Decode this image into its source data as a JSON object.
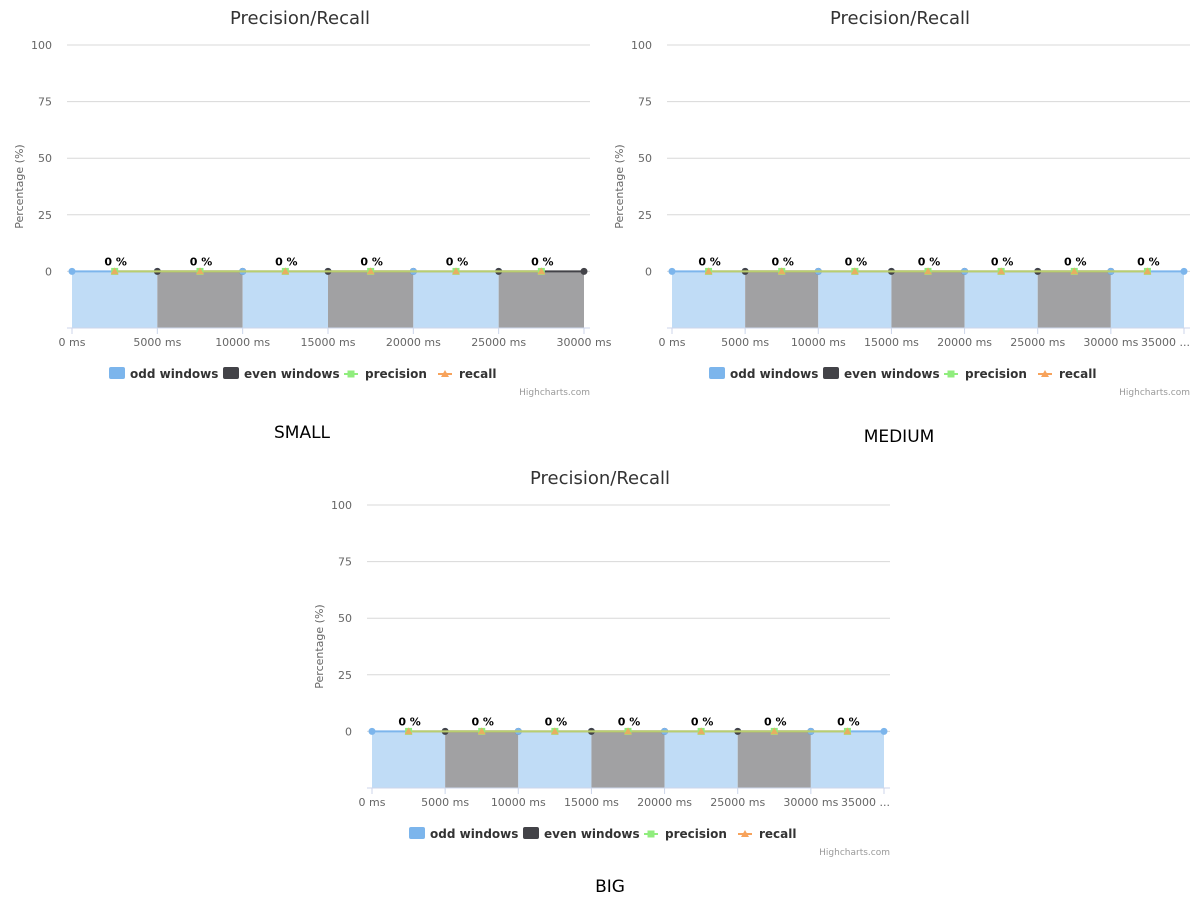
{
  "chart_data": [
    {
      "id": "small",
      "type": "area",
      "title": "Precision/Recall",
      "ylabel": "Percentage (%)",
      "ylim": [
        -25,
        100
      ],
      "yticks": [
        0,
        25,
        50,
        75,
        100
      ],
      "xlim": [
        0,
        30000
      ],
      "xticks": [
        "0 ms",
        "5000 ms",
        "10000 ms",
        "15000 ms",
        "20000 ms",
        "25000 ms",
        "30000 ms"
      ],
      "windows": [
        {
          "start": 0,
          "end": 5000,
          "kind": "odd"
        },
        {
          "start": 5000,
          "end": 10000,
          "kind": "even"
        },
        {
          "start": 10000,
          "end": 15000,
          "kind": "odd"
        },
        {
          "start": 15000,
          "end": 20000,
          "kind": "even"
        },
        {
          "start": 20000,
          "end": 25000,
          "kind": "odd"
        },
        {
          "start": 25000,
          "end": 30000,
          "kind": "even"
        }
      ],
      "window_baseline": -25,
      "window_value": 0,
      "precision": {
        "x": [
          2500,
          7500,
          12500,
          17500,
          22500,
          27500
        ],
        "y": [
          0,
          0,
          0,
          0,
          0,
          0
        ]
      },
      "recall": {
        "x": [
          2500,
          7500,
          12500,
          17500,
          22500,
          27500
        ],
        "y": [
          0,
          0,
          0,
          0,
          0,
          0
        ]
      },
      "data_labels": [
        "0 %",
        "0 %",
        "0 %",
        "0 %",
        "0 %",
        "0 %"
      ],
      "legend": [
        "odd windows",
        "even windows",
        "precision",
        "recall"
      ],
      "legend_position": "bottom-center",
      "credits": "Highcharts.com",
      "grid": true
    },
    {
      "id": "medium",
      "type": "area",
      "title": "Precision/Recall",
      "ylabel": "Percentage (%)",
      "ylim": [
        -25,
        100
      ],
      "yticks": [
        0,
        25,
        50,
        75,
        100
      ],
      "xlim": [
        0,
        35000
      ],
      "xticks": [
        "0 ms",
        "5000 ms",
        "10000 ms",
        "15000 ms",
        "20000 ms",
        "25000 ms",
        "30000 ms",
        "35000 ..."
      ],
      "windows": [
        {
          "start": 0,
          "end": 5000,
          "kind": "odd"
        },
        {
          "start": 5000,
          "end": 10000,
          "kind": "even"
        },
        {
          "start": 10000,
          "end": 15000,
          "kind": "odd"
        },
        {
          "start": 15000,
          "end": 20000,
          "kind": "even"
        },
        {
          "start": 20000,
          "end": 25000,
          "kind": "odd"
        },
        {
          "start": 25000,
          "end": 30000,
          "kind": "even"
        },
        {
          "start": 30000,
          "end": 35000,
          "kind": "odd"
        }
      ],
      "window_baseline": -25,
      "window_value": 0,
      "precision": {
        "x": [
          2500,
          7500,
          12500,
          17500,
          22500,
          27500,
          32500
        ],
        "y": [
          0,
          0,
          0,
          0,
          0,
          0,
          0
        ]
      },
      "recall": {
        "x": [
          2500,
          7500,
          12500,
          17500,
          22500,
          27500,
          32500
        ],
        "y": [
          0,
          0,
          0,
          0,
          0,
          0,
          0
        ]
      },
      "data_labels": [
        "0 %",
        "0 %",
        "0 %",
        "0 %",
        "0 %",
        "0 %",
        "0 %"
      ],
      "legend": [
        "odd windows",
        "even windows",
        "precision",
        "recall"
      ],
      "legend_position": "bottom-center",
      "credits": "Highcharts.com",
      "grid": true
    },
    {
      "id": "big",
      "type": "area",
      "title": "Precision/Recall",
      "ylabel": "Percentage (%)",
      "ylim": [
        -25,
        100
      ],
      "yticks": [
        0,
        25,
        50,
        75,
        100
      ],
      "xlim": [
        0,
        35000
      ],
      "xticks": [
        "0 ms",
        "5000 ms",
        "10000 ms",
        "15000 ms",
        "20000 ms",
        "25000 ms",
        "30000 ms",
        "35000 ..."
      ],
      "windows": [
        {
          "start": 0,
          "end": 5000,
          "kind": "odd"
        },
        {
          "start": 5000,
          "end": 10000,
          "kind": "even"
        },
        {
          "start": 10000,
          "end": 15000,
          "kind": "odd"
        },
        {
          "start": 15000,
          "end": 20000,
          "kind": "even"
        },
        {
          "start": 20000,
          "end": 25000,
          "kind": "odd"
        },
        {
          "start": 25000,
          "end": 30000,
          "kind": "even"
        },
        {
          "start": 30000,
          "end": 35000,
          "kind": "odd"
        }
      ],
      "window_baseline": -25,
      "window_value": 0,
      "precision": {
        "x": [
          2500,
          7500,
          12500,
          17500,
          22500,
          27500,
          32500
        ],
        "y": [
          0,
          0,
          0,
          0,
          0,
          0,
          0
        ]
      },
      "recall": {
        "x": [
          2500,
          7500,
          12500,
          17500,
          22500,
          27500,
          32500
        ],
        "y": [
          0,
          0,
          0,
          0,
          0,
          0,
          0
        ]
      },
      "data_labels": [
        "0 %",
        "0 %",
        "0 %",
        "0 %",
        "0 %",
        "0 %",
        "0 %"
      ],
      "legend": [
        "odd windows",
        "even windows",
        "precision",
        "recall"
      ],
      "legend_position": "bottom-center",
      "credits": "Highcharts.com",
      "grid": true
    }
  ],
  "labels": {
    "small": "SMALL",
    "medium": "MEDIUM",
    "big": "BIG"
  },
  "colors": {
    "odd_line": "#7cb5ec",
    "odd_fill": "#c0dcf6",
    "even_line": "#434348",
    "even_fill": "#a1a1a3",
    "precision": "#90ed7d",
    "recall": "#f7a35c",
    "grid": "#d8d8d8"
  }
}
